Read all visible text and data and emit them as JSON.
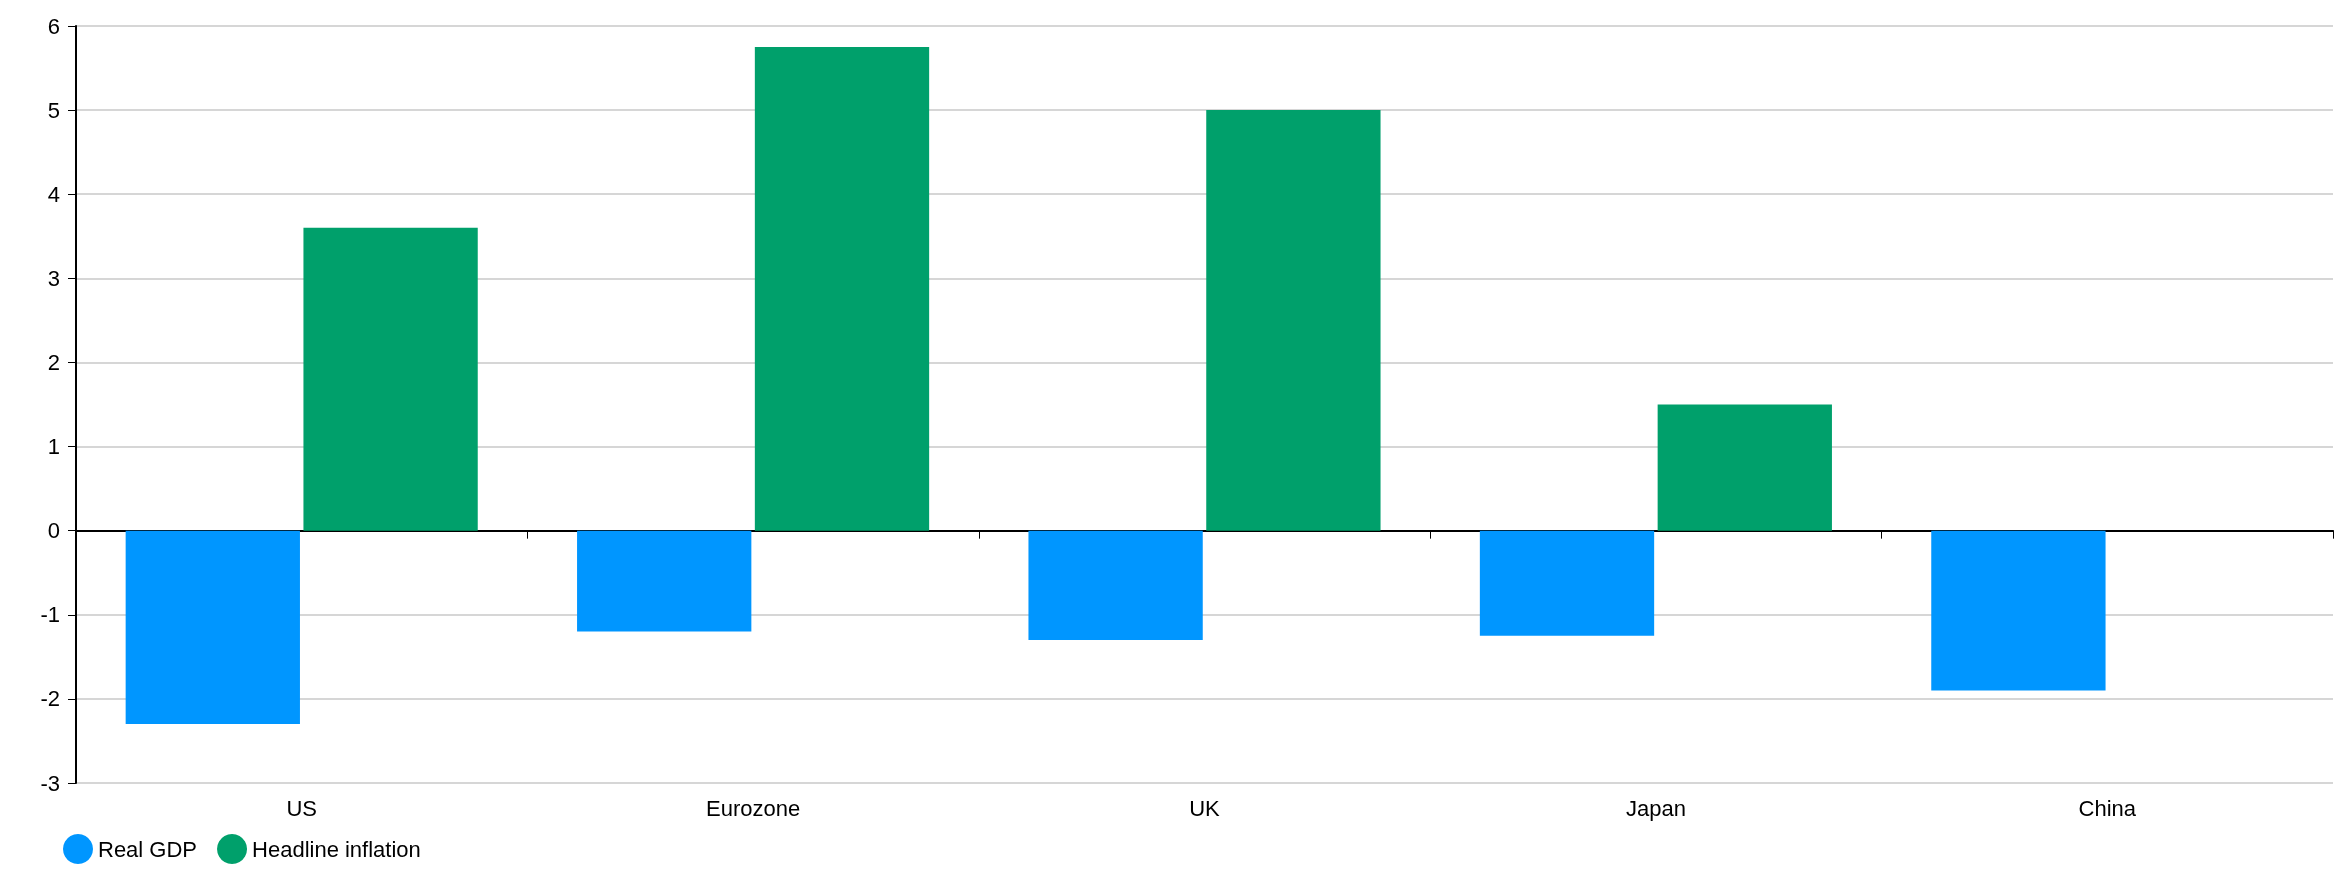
{
  "chart_data": {
    "type": "bar",
    "categories": [
      "US",
      "Eurozone",
      "UK",
      "Japan",
      "China"
    ],
    "series": [
      {
        "name": "Real GDP",
        "color": "#0096ff",
        "values": [
          -2.3,
          -1.2,
          -1.3,
          -1.25,
          -1.9
        ]
      },
      {
        "name": "Headline inflation",
        "color": "#00a06b",
        "values": [
          3.6,
          5.75,
          5.0,
          1.5,
          null
        ]
      }
    ],
    "ylim": [
      -3,
      6
    ],
    "yticks": [
      -3,
      -2,
      -1,
      0,
      1,
      2,
      3,
      4,
      5,
      6
    ],
    "grid": "y",
    "legend": "bottom left"
  }
}
